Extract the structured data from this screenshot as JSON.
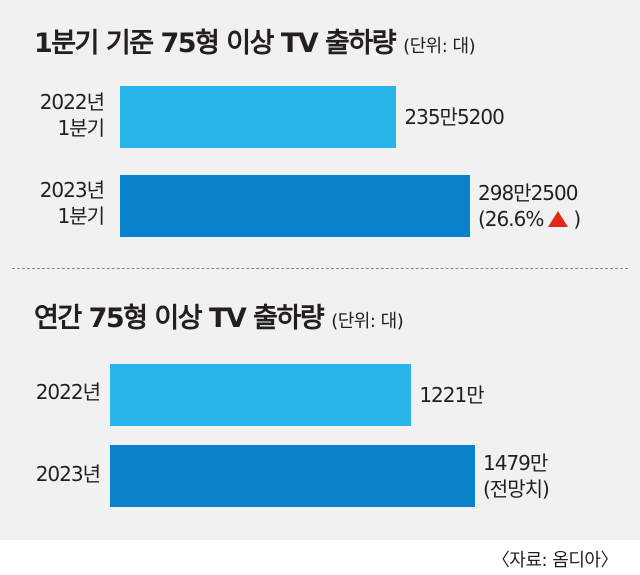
{
  "colors": {
    "bar_2022": "#27b5ea",
    "bar_2023": "#0b82cc",
    "up_arrow": "#e2271b",
    "text": "#231f20",
    "panel": "#f1f1f1"
  },
  "source": "〈자료: 옴디아〉",
  "chart_data": [
    {
      "type": "bar",
      "orientation": "horizontal",
      "title": "1분기 기준 75형 이상 TV 출하량",
      "unit_note": "(단위: 대)",
      "categories": [
        {
          "line1": "2022년",
          "line2": "1분기"
        },
        {
          "line1": "2023년",
          "line2": "1분기"
        }
      ],
      "values": [
        2355200,
        2982500
      ],
      "value_labels": [
        "235만5200",
        "298만2500"
      ],
      "change_label": {
        "open": "(26.6%",
        "icon": "up-triangle-icon",
        "close": ")"
      }
    },
    {
      "type": "bar",
      "orientation": "horizontal",
      "title": "연간 75형 이상 TV 출하량",
      "unit_note": "(단위: 대)",
      "categories": [
        "2022년",
        "2023년"
      ],
      "values": [
        12210000,
        14790000
      ],
      "value_labels": [
        "1221만",
        "1479만"
      ],
      "notes": [
        "",
        "(전망치)"
      ]
    }
  ]
}
